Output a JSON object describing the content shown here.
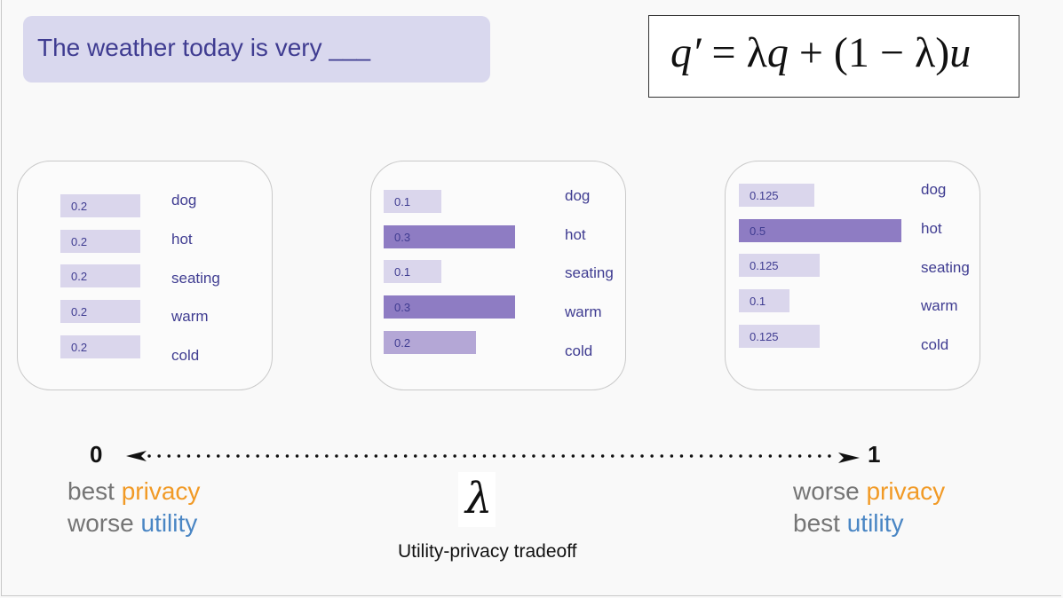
{
  "prompt": {
    "text": "The weather today is very ___"
  },
  "formula": {
    "display": "q′ = λq + (1 − λ)u",
    "parts": [
      "q′",
      " = λ",
      "q",
      " + (1 − λ)",
      "u"
    ]
  },
  "cards": [
    {
      "rows": [
        {
          "value": "0.2",
          "word": "dog",
          "level": 0.2
        },
        {
          "value": "0.2",
          "word": "hot",
          "level": 0.2
        },
        {
          "value": "0.2",
          "word": "seating",
          "level": 0.2
        },
        {
          "value": "0.2",
          "word": "warm",
          "level": 0.2
        },
        {
          "value": "0.2",
          "word": "cold",
          "level": 0.2
        }
      ]
    },
    {
      "rows": [
        {
          "value": "0.1",
          "word": "dog",
          "level": 0.1
        },
        {
          "value": "0.3",
          "word": "hot",
          "level": 0.3
        },
        {
          "value": "0.1",
          "word": "seating",
          "level": 0.1
        },
        {
          "value": "0.3",
          "word": "warm",
          "level": 0.3
        },
        {
          "value": "0.2",
          "word": "cold",
          "level": 0.2
        }
      ]
    },
    {
      "rows": [
        {
          "value": "0.125",
          "word": "dog",
          "level": 0.125
        },
        {
          "value": "0.5",
          "word": "hot",
          "level": 0.5
        },
        {
          "value": "0.125",
          "word": "seating",
          "level": 0.125
        },
        {
          "value": "0.1",
          "word": "warm",
          "level": 0.1
        },
        {
          "value": "0.125",
          "word": "cold",
          "level": 0.125
        }
      ]
    }
  ],
  "scale": {
    "left_end": "0",
    "right_end": "1",
    "symbol": "λ",
    "caption": "Utility-privacy tradeoff",
    "left_note": {
      "line1": {
        "a": "best",
        "b": "privacy"
      },
      "line2": {
        "a": "worse",
        "b": "utility"
      }
    },
    "right_note": {
      "line1": {
        "a": "worse",
        "b": "privacy"
      },
      "line2": {
        "a": "best",
        "b": "utility"
      }
    }
  },
  "colors": {
    "prompt_bg": "#d9d8ee",
    "text_indigo": "#3f3c91",
    "bar_light": "#dad6ec",
    "bar_mid": "#b4a7d6",
    "bar_dark": "#8e7cc3",
    "privacy": "#f19a26",
    "utility": "#4a86c4",
    "note_gray": "#757575"
  }
}
